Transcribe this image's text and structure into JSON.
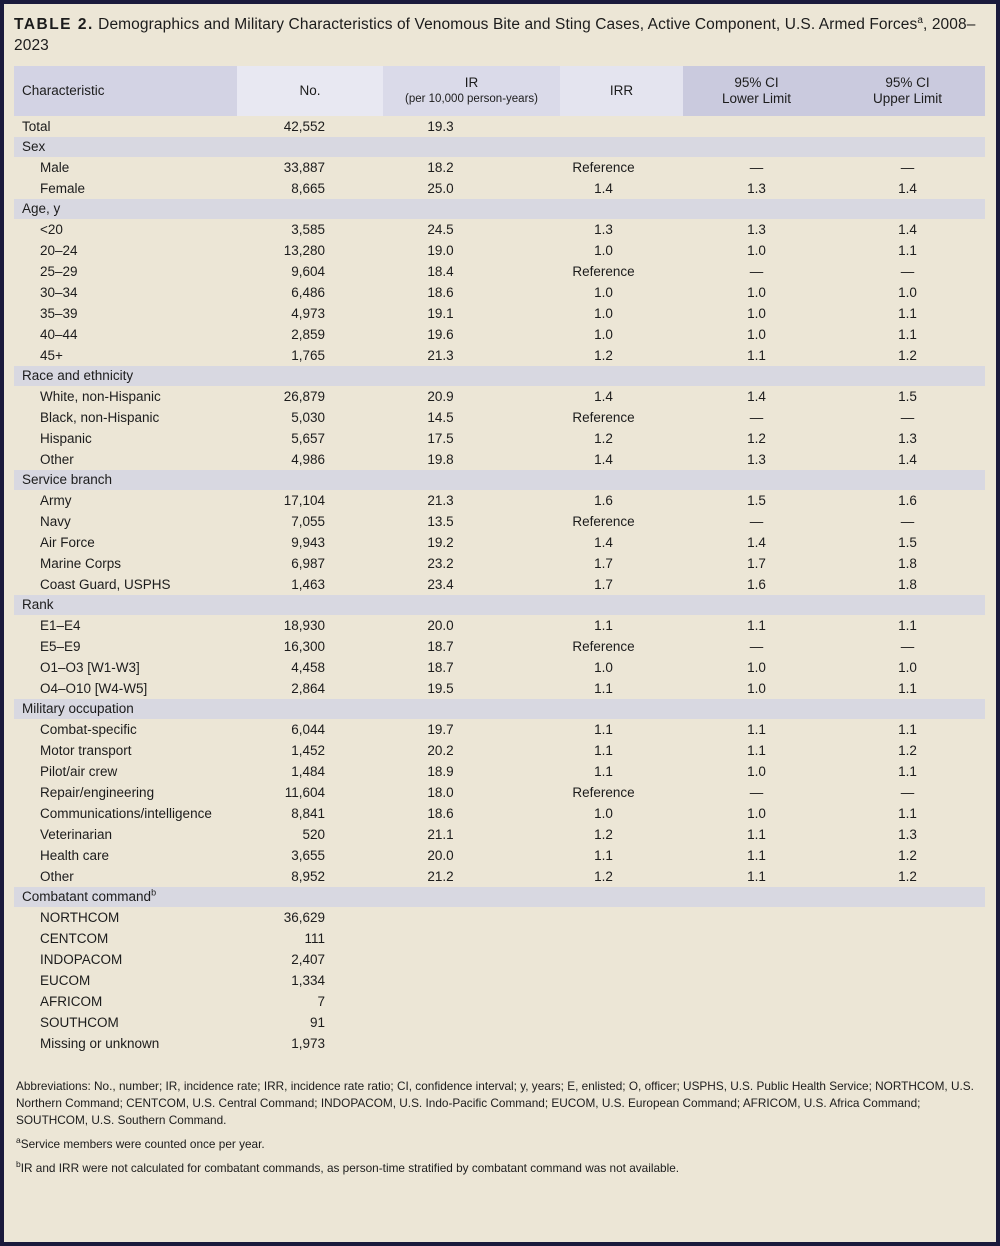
{
  "colors": {
    "frame": "#1a1a3c",
    "background": "#ece6d6",
    "section_band": "#d8d8e1",
    "header_characteristic": "#d3d3e4",
    "header_no": "#e8e8f2",
    "header_ir": "#dadae9",
    "header_irr": "#e4e4ef",
    "header_ci": "#cacade",
    "text": "#1c1c1c"
  },
  "title": {
    "label": "TABLE 2.",
    "text": " Demographics and Military Characteristics of Venomous Bite and Sting Cases, Active Component, U.S. Armed Forces",
    "sup": "a",
    "suffix": ", 2008–2023"
  },
  "table": {
    "columns": [
      {
        "label": "Characteristic",
        "label2": ""
      },
      {
        "label": "No.",
        "label2": ""
      },
      {
        "label": "IR",
        "label2": "(per 10,000 person-years)"
      },
      {
        "label": "IRR",
        "label2": ""
      },
      {
        "label": "95% CI",
        "label2": "Lower Limit"
      },
      {
        "label": "95% CI",
        "label2": "Upper Limit"
      }
    ],
    "rows": [
      {
        "type": "data",
        "label": "Total",
        "indent": false,
        "no": "42,552",
        "ir": "19.3",
        "irr": "",
        "ci_lower": "",
        "ci_upper": ""
      },
      {
        "type": "section",
        "label": "Sex"
      },
      {
        "type": "data",
        "label": "Male",
        "no": "33,887",
        "ir": "18.2",
        "irr": "Reference",
        "ci_lower": "—",
        "ci_upper": "—"
      },
      {
        "type": "data",
        "label": "Female",
        "no": "8,665",
        "ir": "25.0",
        "irr": "1.4",
        "ci_lower": "1.3",
        "ci_upper": "1.4"
      },
      {
        "type": "section",
        "label": "Age, y"
      },
      {
        "type": "data",
        "label": "<20",
        "no": "3,585",
        "ir": "24.5",
        "irr": "1.3",
        "ci_lower": "1.3",
        "ci_upper": "1.4"
      },
      {
        "type": "data",
        "label": "20–24",
        "no": "13,280",
        "ir": "19.0",
        "irr": "1.0",
        "ci_lower": "1.0",
        "ci_upper": "1.1"
      },
      {
        "type": "data",
        "label": "25–29",
        "no": "9,604",
        "ir": "18.4",
        "irr": "Reference",
        "ci_lower": "—",
        "ci_upper": "—"
      },
      {
        "type": "data",
        "label": "30–34",
        "no": "6,486",
        "ir": "18.6",
        "irr": "1.0",
        "ci_lower": "1.0",
        "ci_upper": "1.0"
      },
      {
        "type": "data",
        "label": "35–39",
        "no": "4,973",
        "ir": "19.1",
        "irr": "1.0",
        "ci_lower": "1.0",
        "ci_upper": "1.1"
      },
      {
        "type": "data",
        "label": "40–44",
        "no": "2,859",
        "ir": "19.6",
        "irr": "1.0",
        "ci_lower": "1.0",
        "ci_upper": "1.1"
      },
      {
        "type": "data",
        "label": "45+",
        "no": "1,765",
        "ir": "21.3",
        "irr": "1.2",
        "ci_lower": "1.1",
        "ci_upper": "1.2"
      },
      {
        "type": "section",
        "label": "Race and ethnicity"
      },
      {
        "type": "data",
        "label": "White, non-Hispanic",
        "no": "26,879",
        "ir": "20.9",
        "irr": "1.4",
        "ci_lower": "1.4",
        "ci_upper": "1.5"
      },
      {
        "type": "data",
        "label": "Black, non-Hispanic",
        "no": "5,030",
        "ir": "14.5",
        "irr": "Reference",
        "ci_lower": "—",
        "ci_upper": "—"
      },
      {
        "type": "data",
        "label": "Hispanic",
        "no": "5,657",
        "ir": "17.5",
        "irr": "1.2",
        "ci_lower": "1.2",
        "ci_upper": "1.3"
      },
      {
        "type": "data",
        "label": "Other",
        "no": "4,986",
        "ir": "19.8",
        "irr": "1.4",
        "ci_lower": "1.3",
        "ci_upper": "1.4"
      },
      {
        "type": "section",
        "label": "Service branch"
      },
      {
        "type": "data",
        "label": "Army",
        "no": "17,104",
        "ir": "21.3",
        "irr": "1.6",
        "ci_lower": "1.5",
        "ci_upper": "1.6"
      },
      {
        "type": "data",
        "label": "Navy",
        "no": "7,055",
        "ir": "13.5",
        "irr": "Reference",
        "ci_lower": "—",
        "ci_upper": "—"
      },
      {
        "type": "data",
        "label": "Air Force",
        "no": "9,943",
        "ir": "19.2",
        "irr": "1.4",
        "ci_lower": "1.4",
        "ci_upper": "1.5"
      },
      {
        "type": "data",
        "label": "Marine Corps",
        "no": "6,987",
        "ir": "23.2",
        "irr": "1.7",
        "ci_lower": "1.7",
        "ci_upper": "1.8"
      },
      {
        "type": "data",
        "label": "Coast Guard, USPHS",
        "no": "1,463",
        "ir": "23.4",
        "irr": "1.7",
        "ci_lower": "1.6",
        "ci_upper": "1.8"
      },
      {
        "type": "section",
        "label": "Rank"
      },
      {
        "type": "data",
        "label": "E1–E4",
        "no": "18,930",
        "ir": "20.0",
        "irr": "1.1",
        "ci_lower": "1.1",
        "ci_upper": "1.1"
      },
      {
        "type": "data",
        "label": "E5–E9",
        "no": "16,300",
        "ir": "18.7",
        "irr": "Reference",
        "ci_lower": "—",
        "ci_upper": "—"
      },
      {
        "type": "data",
        "label": "O1–O3 [W1-W3]",
        "no": "4,458",
        "ir": "18.7",
        "irr": "1.0",
        "ci_lower": "1.0",
        "ci_upper": "1.0"
      },
      {
        "type": "data",
        "label": "O4–O10 [W4-W5]",
        "no": "2,864",
        "ir": "19.5",
        "irr": "1.1",
        "ci_lower": "1.0",
        "ci_upper": "1.1"
      },
      {
        "type": "section",
        "label": "Military occupation"
      },
      {
        "type": "data",
        "label": "Combat-specific",
        "no": "6,044",
        "ir": "19.7",
        "irr": "1.1",
        "ci_lower": "1.1",
        "ci_upper": "1.1"
      },
      {
        "type": "data",
        "label": "Motor transport",
        "no": "1,452",
        "ir": "20.2",
        "irr": "1.1",
        "ci_lower": "1.1",
        "ci_upper": "1.2"
      },
      {
        "type": "data",
        "label": "Pilot/air crew",
        "no": "1,484",
        "ir": "18.9",
        "irr": "1.1",
        "ci_lower": "1.0",
        "ci_upper": "1.1"
      },
      {
        "type": "data",
        "label": "Repair/engineering",
        "no": "11,604",
        "ir": "18.0",
        "irr": "Reference",
        "ci_lower": "—",
        "ci_upper": "—"
      },
      {
        "type": "data",
        "label": "Communications/intelligence",
        "no": "8,841",
        "ir": "18.6",
        "irr": "1.0",
        "ci_lower": "1.0",
        "ci_upper": "1.1"
      },
      {
        "type": "data",
        "label": "Veterinarian",
        "no": "520",
        "ir": "21.1",
        "irr": "1.2",
        "ci_lower": "1.1",
        "ci_upper": "1.3"
      },
      {
        "type": "data",
        "label": "Health care",
        "no": "3,655",
        "ir": "20.0",
        "irr": "1.1",
        "ci_lower": "1.1",
        "ci_upper": "1.2"
      },
      {
        "type": "data",
        "label": "Other",
        "no": "8,952",
        "ir": "21.2",
        "irr": "1.2",
        "ci_lower": "1.1",
        "ci_upper": "1.2"
      },
      {
        "type": "section",
        "label": "Combatant command",
        "sup": "b"
      },
      {
        "type": "data",
        "label": "NORTHCOM",
        "no": "36,629",
        "ir": "",
        "irr": "",
        "ci_lower": "",
        "ci_upper": ""
      },
      {
        "type": "data",
        "label": "CENTCOM",
        "no": "111",
        "ir": "",
        "irr": "",
        "ci_lower": "",
        "ci_upper": ""
      },
      {
        "type": "data",
        "label": "INDOPACOM",
        "no": "2,407",
        "ir": "",
        "irr": "",
        "ci_lower": "",
        "ci_upper": ""
      },
      {
        "type": "data",
        "label": "EUCOM",
        "no": "1,334",
        "ir": "",
        "irr": "",
        "ci_lower": "",
        "ci_upper": ""
      },
      {
        "type": "data",
        "label": "AFRICOM",
        "no": "7",
        "ir": "",
        "irr": "",
        "ci_lower": "",
        "ci_upper": ""
      },
      {
        "type": "data",
        "label": "SOUTHCOM",
        "no": "91",
        "ir": "",
        "irr": "",
        "ci_lower": "",
        "ci_upper": ""
      },
      {
        "type": "data",
        "label": "Missing or unknown",
        "no": "1,973",
        "ir": "",
        "irr": "",
        "ci_lower": "",
        "ci_upper": ""
      }
    ]
  },
  "footnotes": {
    "abbreviations": "Abbreviations: No., number; IR, incidence rate; IRR, incidence rate ratio; CI, confidence interval; y, years; E, enlisted; O, officer; USPHS, U.S. Public Health Service; NORTHCOM, U.S. Northern Command; CENTCOM, U.S. Central Command; INDOPACOM, U.S. Indo-Pacific Command; EUCOM, U.S. European Command; AFRICOM, U.S. Africa Command; SOUTHCOM, U.S. Southern Command.",
    "a_marker": "a",
    "a_text": "Service members were counted once per year.",
    "b_marker": "b",
    "b_text": "IR and IRR were not calculated for combatant commands, as person-time stratified by combatant command was not available."
  }
}
